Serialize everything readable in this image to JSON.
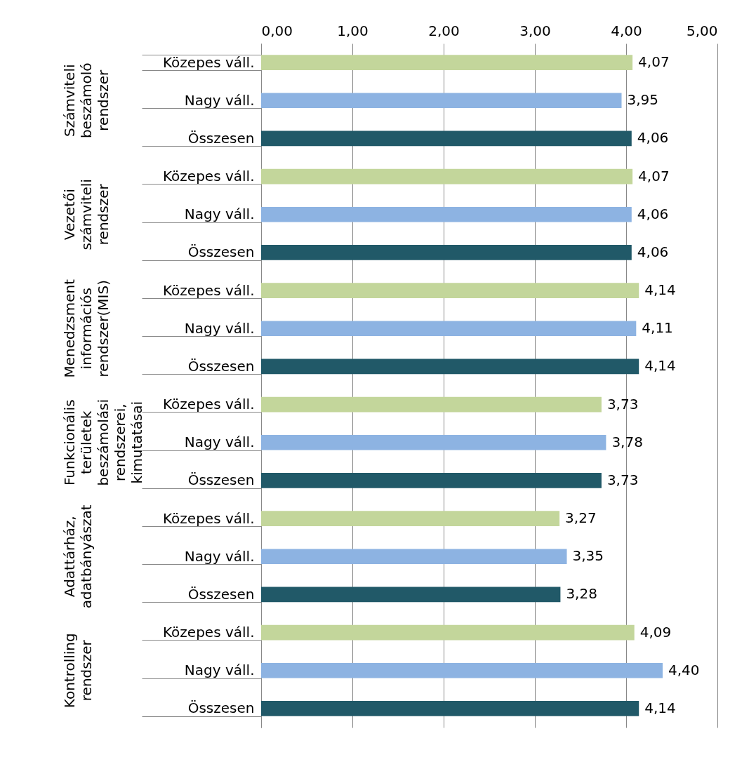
{
  "chart_data": {
    "type": "bar",
    "orientation": "horizontal",
    "categories": [
      "Közepes váll.",
      "Nagy váll.",
      "Összesen",
      "Közepes váll.",
      "Nagy váll.",
      "Összesen",
      "Közepes váll.",
      "Nagy váll.",
      "Összesen",
      "Közepes váll.",
      "Nagy váll.",
      "Összesen",
      "Közepes váll.",
      "Nagy váll.",
      "Összesen",
      "Közepes váll.",
      "Nagy váll.",
      "Összesen"
    ],
    "values": [
      4.07,
      3.95,
      4.06,
      4.07,
      4.06,
      4.06,
      4.14,
      4.11,
      4.14,
      3.73,
      3.78,
      3.73,
      3.27,
      3.35,
      3.28,
      4.09,
      4.4,
      4.14
    ],
    "colors": [
      "#c3d69b",
      "#8db3e2",
      "#215968",
      "#c3d69b",
      "#8db3e2",
      "#215968",
      "#c3d69b",
      "#8db3e2",
      "#215968",
      "#c3d69b",
      "#8db3e2",
      "#215968",
      "#c3d69b",
      "#8db3e2",
      "#215968",
      "#c3d69b",
      "#8db3e2",
      "#215968"
    ],
    "value_labels": [
      "4,07",
      "3,95",
      "4,06",
      "4,07",
      "4,06",
      "4,06",
      "4,14",
      "4,11",
      "4,14",
      "3,73",
      "3,78",
      "3,73",
      "3,27",
      "3,35",
      "3,28",
      "4,09",
      "4,40",
      "4,14"
    ],
    "annotations": [
      "Számviteli\nbeszámoló\nrendszer",
      "Vezetői\nszámviteli\nrendszer",
      "Menedzsment\ninformációs\nrendszer(MIS)",
      "Funkcionális\nterületek\nbeszámolási\nrendszerei,\nkimutatásai",
      "Adattárház,\nadatbányászat",
      "Kontrolling\nrendszer"
    ],
    "xlim": [
      0,
      5
    ],
    "xticks": [
      {
        "value": 0,
        "label": "0,00"
      },
      {
        "value": 1,
        "label": "1,00"
      },
      {
        "value": 2,
        "label": "2,00"
      },
      {
        "value": 3,
        "label": "3,00"
      },
      {
        "value": 4,
        "label": "4,00"
      },
      {
        "value": 5,
        "label": "5,00"
      }
    ],
    "grid": "x"
  }
}
